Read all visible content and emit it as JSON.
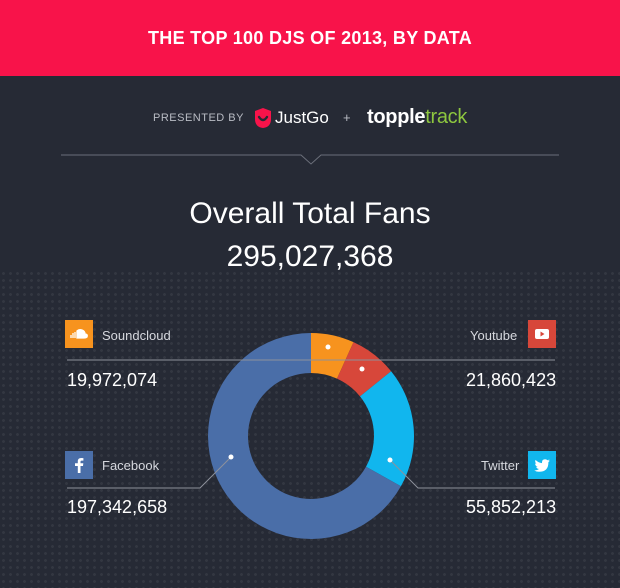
{
  "header": {
    "title": "THE TOP 100 DJS OF 2013, BY DATA"
  },
  "sponsors": {
    "presented_by": "PRESENTED BY",
    "brand1": "JustGo",
    "plus": "+",
    "brand2_a": "topple",
    "brand2_b": "track"
  },
  "total": {
    "label": "Overall Total Fans",
    "value": "295,027,368"
  },
  "colors": {
    "banner": "#f8134a",
    "background": "#262a35",
    "soundcloud": "#f7931e",
    "youtube": "#d7473a",
    "twitter": "#11b6ee",
    "facebook": "#4a6ea8"
  },
  "platforms": {
    "soundcloud": {
      "label": "Soundcloud",
      "value": "19,972,074",
      "icon": "soundcloud-icon"
    },
    "youtube": {
      "label": "Youtube",
      "value": "21,860,423",
      "icon": "youtube-icon"
    },
    "facebook": {
      "label": "Facebook",
      "value": "197,342,658",
      "icon": "facebook-icon"
    },
    "twitter": {
      "label": "Twitter",
      "value": "55,852,213",
      "icon": "twitter-icon"
    }
  },
  "chart_data": {
    "type": "pie",
    "title": "Overall Total Fans",
    "categories": [
      "Soundcloud",
      "Youtube",
      "Twitter",
      "Facebook"
    ],
    "values": [
      19972074,
      21860423,
      55852213,
      197342658
    ],
    "colors": [
      "#f7931e",
      "#d7473a",
      "#11b6ee",
      "#4a6ea8"
    ],
    "donut": true
  }
}
